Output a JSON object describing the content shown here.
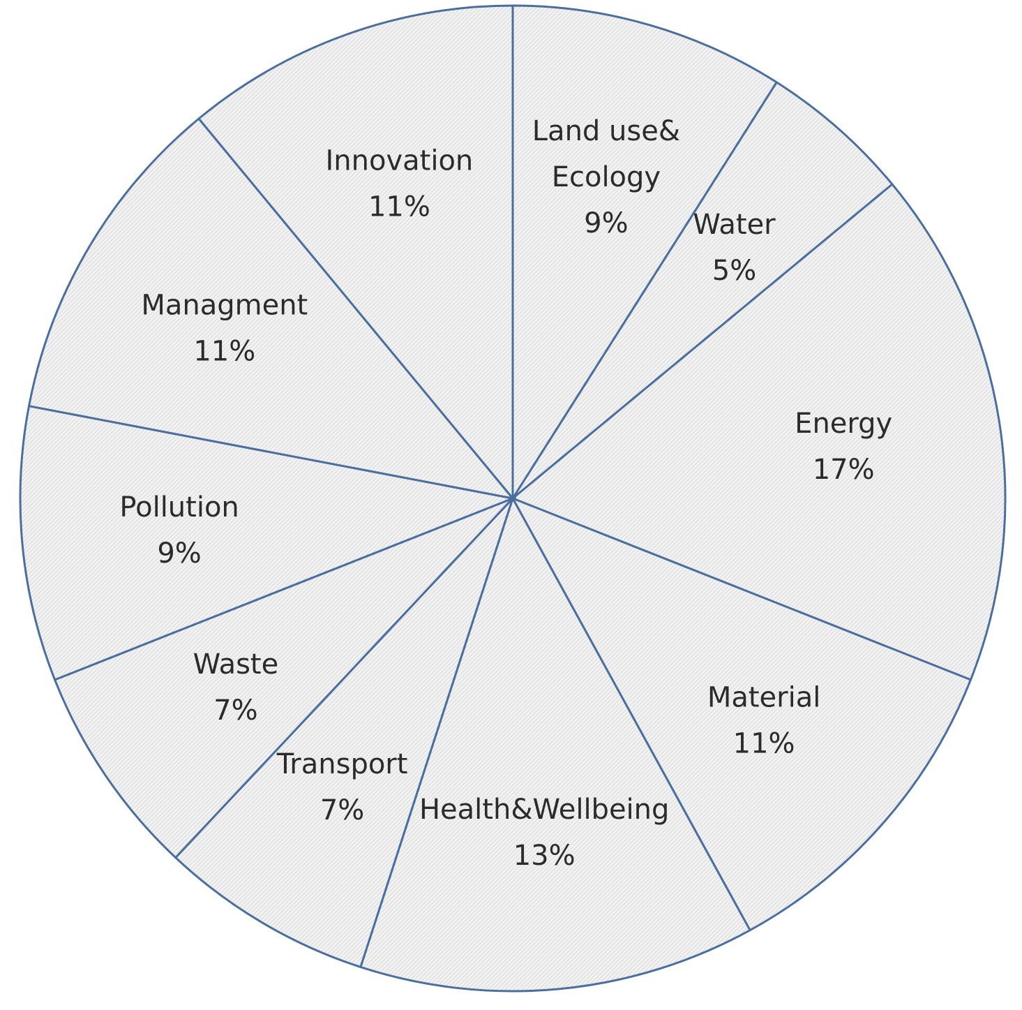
{
  "chart_data": {
    "type": "pie",
    "start_angle_deg": 0,
    "direction": "clockwise",
    "colors": {
      "fill": "#f2f2f2",
      "hatch": "#d9d9d9",
      "stroke": "#4a6f9e",
      "text": "#2b2b2b"
    },
    "slices": [
      {
        "label_lines": [
          "Land use&",
          "Ecology"
        ],
        "percent_label": "9%",
        "value": 9
      },
      {
        "label_lines": [
          "Water"
        ],
        "percent_label": "5%",
        "value": 5
      },
      {
        "label_lines": [
          "Energy"
        ],
        "percent_label": "17%",
        "value": 17
      },
      {
        "label_lines": [
          "Material"
        ],
        "percent_label": "11%",
        "value": 11
      },
      {
        "label_lines": [
          "Health&Wellbeing"
        ],
        "percent_label": "13%",
        "value": 13
      },
      {
        "label_lines": [
          "Transport"
        ],
        "percent_label": "7%",
        "value": 7
      },
      {
        "label_lines": [
          "Waste"
        ],
        "percent_label": "7%",
        "value": 7
      },
      {
        "label_lines": [
          "Pollution"
        ],
        "percent_label": "9%",
        "value": 9
      },
      {
        "label_lines": [
          "Managment"
        ],
        "percent_label": "11%",
        "value": 11
      },
      {
        "label_lines": [
          "Innovation"
        ],
        "percent_label": "11%",
        "value": 11
      }
    ]
  }
}
